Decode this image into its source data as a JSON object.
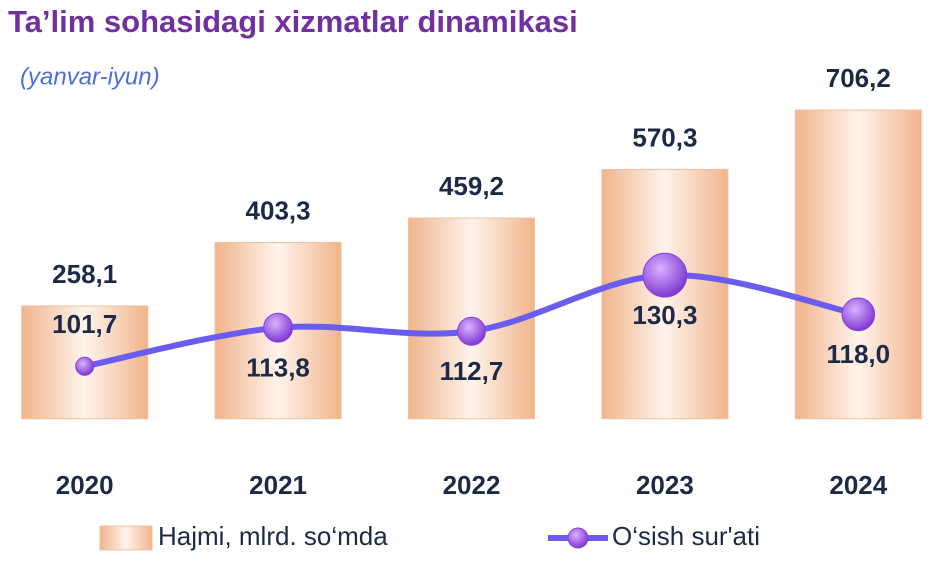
{
  "chart_data": {
    "type": "bar",
    "title": "Ta’lim sohasidagi xizmatlar dinamikasi",
    "subtitle": "(yanvar-iyun)",
    "categories": [
      "2020",
      "2021",
      "2022",
      "2023",
      "2024"
    ],
    "series": [
      {
        "name": "Hajmi, mlrd. so‘mda",
        "type": "bar",
        "color": "#f4c19c",
        "values": [
          258.1,
          403.3,
          459.2,
          570.3,
          706.2
        ],
        "value_labels": [
          "258,1",
          "403,3",
          "459,2",
          "570,3",
          "706,2"
        ]
      },
      {
        "name": "O‘sish sur'ati",
        "type": "line",
        "axis": "y2",
        "color": "#6b5cf0",
        "marker_color": "#8b3fd9",
        "values": [
          101.7,
          113.8,
          112.7,
          130.3,
          118.0
        ],
        "value_labels": [
          "101,7",
          "113,8",
          "112,7",
          "130,3",
          "118,0"
        ]
      }
    ],
    "ylim": [
      -60,
      800
    ],
    "y2lim": [
      77,
      195
    ]
  }
}
